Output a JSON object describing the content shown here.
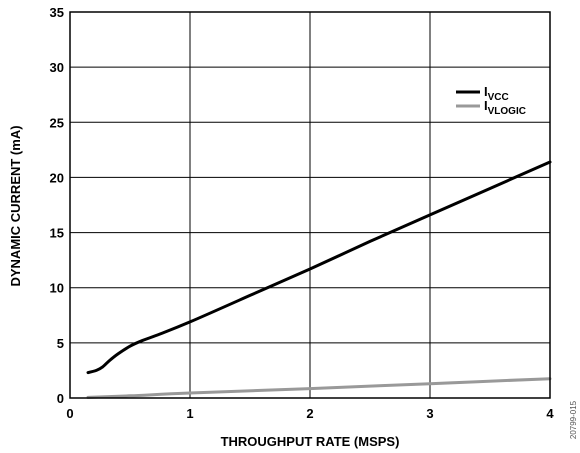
{
  "chart_data": {
    "type": "line",
    "xlabel": "THROUGHPUT RATE (MSPS)",
    "ylabel": "DYNAMIC CURRENT (mA)",
    "xlim": [
      0,
      4
    ],
    "ylim": [
      0,
      35
    ],
    "x_ticks": [
      "0",
      "1",
      "2",
      "3",
      "4"
    ],
    "y_ticks": [
      "0",
      "5",
      "10",
      "15",
      "20",
      "25",
      "30",
      "35"
    ],
    "grid": true,
    "legend_position": "top-right",
    "series": [
      {
        "name": "I",
        "name_sub": "VCC",
        "color": "#000000",
        "points": [
          [
            0.15,
            2.3
          ],
          [
            0.22,
            2.5
          ],
          [
            0.27,
            2.8
          ],
          [
            0.33,
            3.4
          ],
          [
            0.4,
            4.0
          ],
          [
            0.5,
            4.7
          ],
          [
            0.6,
            5.2
          ],
          [
            0.75,
            5.8
          ],
          [
            1.0,
            6.9
          ],
          [
            1.5,
            9.3
          ],
          [
            2.0,
            11.7
          ],
          [
            2.5,
            14.2
          ],
          [
            3.0,
            16.6
          ],
          [
            3.5,
            19.0
          ],
          [
            4.0,
            21.4
          ]
        ]
      },
      {
        "name": "I",
        "name_sub": "VLOGIC",
        "color": "#999999",
        "points": [
          [
            0.15,
            0.05
          ],
          [
            0.5,
            0.2
          ],
          [
            1.0,
            0.45
          ],
          [
            2.0,
            0.85
          ],
          [
            3.0,
            1.3
          ],
          [
            4.0,
            1.75
          ]
        ]
      }
    ]
  },
  "figure_code": "20799-015"
}
